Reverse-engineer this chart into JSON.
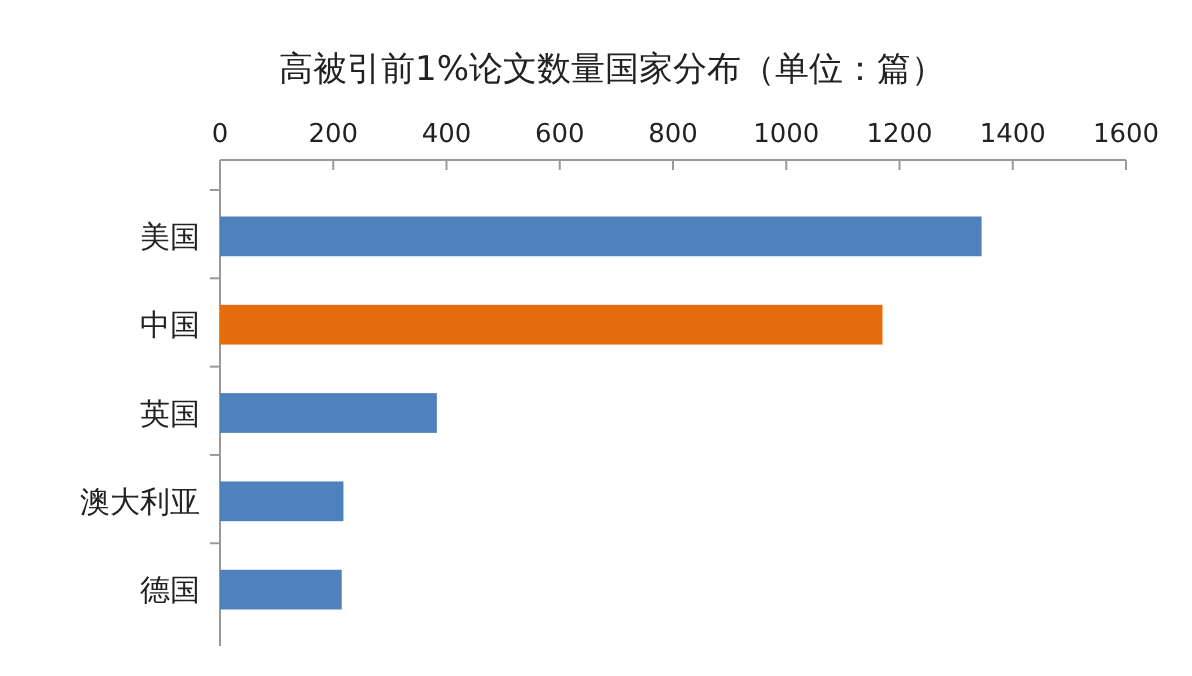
{
  "chart_data": {
    "type": "bar",
    "orientation": "horizontal",
    "title": "高被引前1%论文数量国家分布（单位：篇）",
    "categories": [
      "美国",
      "中国",
      "英国",
      "澳大利亚",
      "德国"
    ],
    "values": [
      1345,
      1170,
      383,
      218,
      215
    ],
    "colors": [
      "#4f81bd",
      "#e46c0a",
      "#4f81bd",
      "#4f81bd",
      "#4f81bd"
    ],
    "xlim": [
      0,
      1600
    ],
    "xticks": [
      0,
      200,
      400,
      600,
      800,
      1000,
      1200,
      1400,
      1600
    ],
    "grid": false
  }
}
